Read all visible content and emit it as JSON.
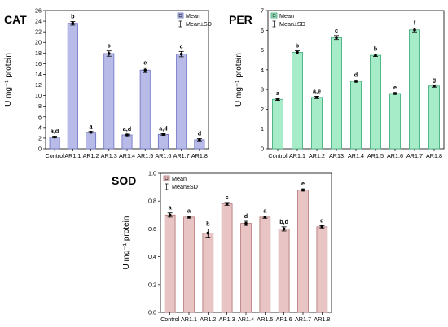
{
  "chart_data": [
    {
      "type": "bar",
      "title": "CAT",
      "ylabel": "U mg⁻¹ protein",
      "ylim": [
        0,
        26
      ],
      "ytick_step": 2,
      "grid": false,
      "legend_placement": "top-right",
      "legend": [
        "Mean",
        "Mean±SD"
      ],
      "color": "#b8bbe8",
      "edge_color": "#6a6fc0",
      "categories": [
        "Control",
        "AR1.1",
        "AR1.2",
        "AR1.3",
        "AR1.4",
        "AR1.5",
        "AR1.6",
        "AR1.7",
        "AR1.8"
      ],
      "values": [
        2.2,
        23.6,
        3.1,
        17.9,
        2.6,
        14.8,
        2.7,
        17.8,
        1.7
      ],
      "errors": [
        0.15,
        0.35,
        0.15,
        0.5,
        0.15,
        0.45,
        0.15,
        0.5,
        0.2
      ],
      "annotations": [
        "a,d",
        "b",
        "a",
        "c",
        "a,d",
        "e",
        "a,d",
        "c",
        "d"
      ]
    },
    {
      "type": "bar",
      "title": "PER",
      "ylabel": "U mg⁻¹ protein",
      "ylim": [
        0,
        7
      ],
      "ytick_step": 1,
      "grid": false,
      "legend_placement": "top-left",
      "legend": [
        "Mean",
        "Mean±SD"
      ],
      "color": "#a6ecc8",
      "edge_color": "#3da978",
      "categories": [
        "Control",
        "AR1.1",
        "AR1.2",
        "AR13",
        "AR1.4",
        "AR1.5",
        "AR1.6",
        "AR1.7",
        "AR1.8"
      ],
      "values": [
        2.5,
        4.88,
        2.6,
        5.63,
        3.42,
        4.73,
        2.8,
        6.02,
        3.18
      ],
      "errors": [
        0.05,
        0.08,
        0.06,
        0.1,
        0.05,
        0.06,
        0.05,
        0.1,
        0.06
      ],
      "annotations": [
        "a",
        "b",
        "a,e",
        "c",
        "d",
        "b",
        "e",
        "f",
        "g"
      ]
    },
    {
      "type": "bar",
      "title": "SOD",
      "ylabel": "U mg⁻¹ protein",
      "ylim": [
        0,
        1.0
      ],
      "ytick_step": 0.2,
      "grid": false,
      "legend_placement": "top-left",
      "legend": [
        "Mean",
        "Mean±SD"
      ],
      "color": "#e8c4c4",
      "edge_color": "#b07070",
      "categories": [
        "Control",
        "AR1.1",
        "AR1.2",
        "AR1.3",
        "AR1.4",
        "AR1.5",
        "AR1.6",
        "AR1.7",
        "AR1.8"
      ],
      "values": [
        0.7,
        0.685,
        0.57,
        0.78,
        0.64,
        0.685,
        0.6,
        0.88,
        0.615
      ],
      "errors": [
        0.015,
        0.008,
        0.03,
        0.01,
        0.015,
        0.008,
        0.015,
        0.008,
        0.008
      ],
      "annotations": [
        "a",
        "a",
        "b",
        "c",
        "d",
        "a",
        "b,d",
        "e",
        "d"
      ]
    }
  ]
}
